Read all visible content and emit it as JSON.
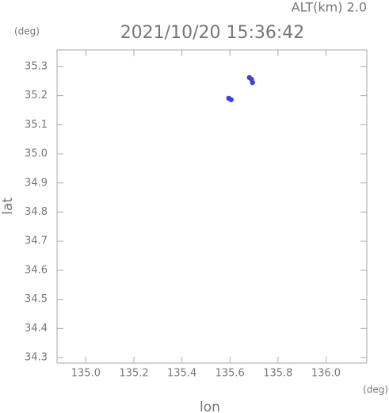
{
  "chart_data": {
    "type": "scatter",
    "title": "2021/10/20 15:36:42",
    "annotation": "ALT(km) 2.0",
    "y_unit": "(deg)",
    "x_unit": "(deg)",
    "xlabel": "lon",
    "ylabel": "lat",
    "series": [
      {
        "color": "#4040e0",
        "x": [
          135.595,
          135.605,
          135.681,
          135.69,
          135.694
        ],
        "values": [
          35.191,
          35.186,
          35.262,
          35.256,
          35.245
        ]
      }
    ],
    "xlim": [
      134.88,
      136.17
    ],
    "ylim": [
      34.281,
      35.357
    ],
    "xticks": [
      {
        "value": 135.0,
        "label": "135.0"
      },
      135.2,
      135.4,
      135.6,
      135.8,
      {
        "value": 136.0,
        "label": "136.0"
      }
    ],
    "yticks": [
      34.3,
      34.4,
      34.5,
      34.6,
      34.7,
      34.8,
      34.9,
      {
        "value": 35.0,
        "label": "35.0"
      },
      35.1,
      35.2,
      35.3
    ]
  }
}
